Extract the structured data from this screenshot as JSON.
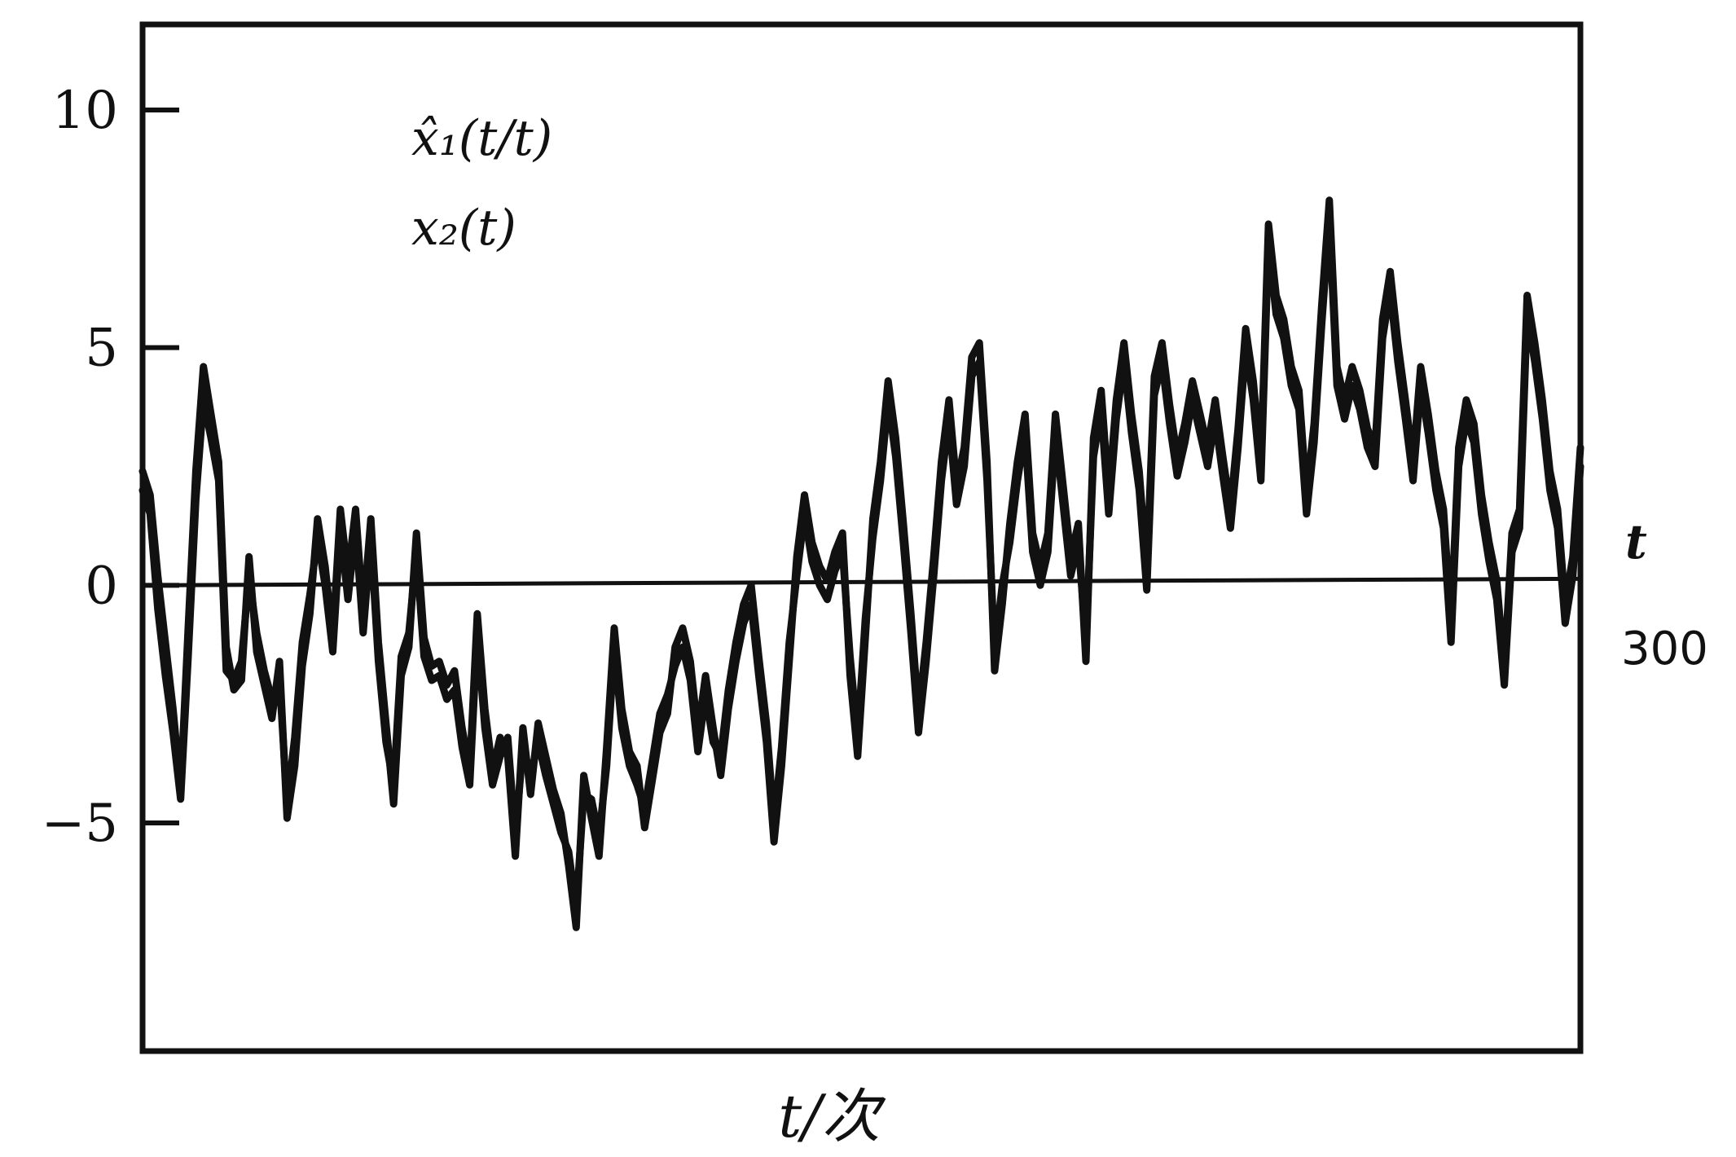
{
  "chart_data": {
    "type": "line",
    "title": "",
    "xlabel": "t/次",
    "ylabel": "",
    "xlim": [
      0,
      300
    ],
    "ylim": [
      -9.8,
      11.8
    ],
    "x_end_label": "300",
    "t_marker": "t",
    "yticks": [
      {
        "value": 10,
        "label": "10"
      },
      {
        "value": 5,
        "label": "5"
      },
      {
        "value": 0,
        "label": "0"
      },
      {
        "value": -5,
        "label": "−5"
      }
    ],
    "legend": [
      {
        "label": "x̂₁(t/t)"
      },
      {
        "label": "x₂(t)"
      }
    ],
    "reference_line": {
      "y": 0
    },
    "grid": false,
    "series": [
      {
        "values": [
          2.4,
          1.9,
          0.2,
          -1.2,
          -2.6,
          -4.3,
          -0.9,
          2.4,
          4.6,
          3.6,
          2.6,
          -1.3,
          -2.2,
          -2.0,
          0.6,
          -1.4,
          -2.1,
          -2.8,
          -1.6,
          -4.9,
          -3.8,
          -1.7,
          -0.6,
          1.4,
          0.4,
          -1.1,
          1.6,
          0.2,
          1.6,
          -0.6,
          1.4,
          -1.2,
          -2.9,
          -4.6,
          -1.9,
          -1.3,
          1.1,
          -1.1,
          -1.7,
          -1.6,
          -2.1,
          -1.8,
          -3.0,
          -3.9,
          -0.6,
          -2.6,
          -3.9,
          -3.2,
          -3.6,
          -5.7,
          -3.0,
          -4.4,
          -2.9,
          -3.6,
          -4.3,
          -4.8,
          -5.9,
          -7.2,
          -4.0,
          -4.9,
          -5.7,
          -3.4,
          -0.9,
          -2.6,
          -3.5,
          -3.8,
          -5.1,
          -4.1,
          -3.1,
          -2.7,
          -1.3,
          -0.9,
          -1.6,
          -3.1,
          -1.9,
          -3.0,
          -4.0,
          -2.6,
          -1.6,
          -0.8,
          -0.4,
          -1.9,
          -3.3,
          -5.4,
          -3.8,
          -1.6,
          0.6,
          1.9,
          0.9,
          0.4,
          0.1,
          0.7,
          1.1,
          -1.9,
          -3.6,
          -1.1,
          1.4,
          2.6,
          4.3,
          3.1,
          1.3,
          -0.6,
          -2.7,
          -1.2,
          0.6,
          2.6,
          3.9,
          2.1,
          2.9,
          4.8,
          5.1,
          2.6,
          -1.8,
          -0.4,
          1.3,
          2.6,
          3.6,
          1.1,
          0.4,
          1.1,
          3.6,
          2.1,
          0.6,
          1.3,
          -1.6,
          3.1,
          4.1,
          1.9,
          3.9,
          5.1,
          3.6,
          2.4,
          0.3,
          4.4,
          5.1,
          3.8,
          2.7,
          3.4,
          4.3,
          3.6,
          2.9,
          3.9,
          2.7,
          1.6,
          3.3,
          5.4,
          4.3,
          2.6,
          7.6,
          6.1,
          5.6,
          4.6,
          4.1,
          1.9,
          3.4,
          5.9,
          8.1,
          4.6,
          3.9,
          4.6,
          4.1,
          3.3,
          2.9,
          5.6,
          6.6,
          5.1,
          3.9,
          2.6,
          4.6,
          3.6,
          2.4,
          1.6,
          -0.8,
          2.9,
          3.9,
          3.4,
          1.9,
          0.9,
          0.1,
          -1.8,
          1.1,
          1.6,
          6.1,
          5.1,
          3.9,
          2.4,
          1.6,
          -0.4,
          0.6,
          2.9
        ]
      },
      {
        "values": [
          2.0,
          1.5,
          -0.5,
          -1.9,
          -3.1,
          -4.5,
          -1.5,
          1.8,
          3.9,
          3.1,
          2.2,
          -1.8,
          -2.0,
          -1.6,
          0.2,
          -1.0,
          -1.8,
          -2.4,
          -2.0,
          -4.6,
          -3.2,
          -1.2,
          -0.2,
          1.0,
          0.0,
          -1.4,
          1.2,
          -0.3,
          1.2,
          -1.0,
          1.0,
          -1.6,
          -3.3,
          -4.2,
          -1.5,
          -1.0,
          0.7,
          -1.5,
          -2.0,
          -1.9,
          -2.4,
          -2.2,
          -3.4,
          -4.2,
          -1.0,
          -3.0,
          -4.2,
          -3.6,
          -3.2,
          -5.3,
          -3.4,
          -4.0,
          -3.3,
          -4.0,
          -4.6,
          -5.2,
          -5.6,
          -6.8,
          -4.4,
          -4.5,
          -5.3,
          -3.8,
          -1.3,
          -3.0,
          -3.8,
          -4.2,
          -4.7,
          -3.7,
          -2.7,
          -2.3,
          -1.7,
          -1.3,
          -2.0,
          -3.5,
          -2.3,
          -3.3,
          -3.6,
          -2.2,
          -1.2,
          -0.4,
          0.0,
          -1.5,
          -2.9,
          -5.0,
          -3.4,
          -1.2,
          0.2,
          1.5,
          0.5,
          0.0,
          -0.3,
          0.3,
          0.7,
          -1.5,
          -3.2,
          -0.7,
          1.0,
          2.2,
          3.9,
          2.7,
          0.9,
          -1.0,
          -3.1,
          -1.6,
          0.2,
          2.2,
          3.5,
          1.7,
          2.5,
          4.4,
          4.7,
          2.2,
          -1.4,
          0.0,
          0.9,
          2.2,
          3.2,
          0.7,
          0.0,
          0.7,
          3.2,
          1.7,
          0.2,
          0.9,
          -1.2,
          2.7,
          3.7,
          1.5,
          3.5,
          4.7,
          3.2,
          2.0,
          -0.1,
          4.0,
          4.7,
          3.4,
          2.3,
          3.0,
          3.9,
          3.2,
          2.5,
          3.5,
          2.3,
          1.2,
          2.9,
          5.0,
          3.9,
          2.2,
          7.2,
          5.7,
          5.2,
          4.2,
          3.7,
          1.5,
          3.0,
          5.5,
          7.7,
          4.2,
          3.5,
          4.2,
          3.7,
          2.9,
          2.5,
          5.2,
          6.2,
          4.7,
          3.5,
          2.2,
          4.2,
          3.2,
          2.0,
          1.2,
          -1.2,
          2.5,
          3.5,
          3.0,
          1.5,
          0.5,
          -0.3,
          -2.1,
          0.7,
          1.2,
          5.7,
          4.7,
          3.5,
          2.0,
          1.2,
          -0.8,
          0.2,
          2.5
        ]
      }
    ]
  }
}
